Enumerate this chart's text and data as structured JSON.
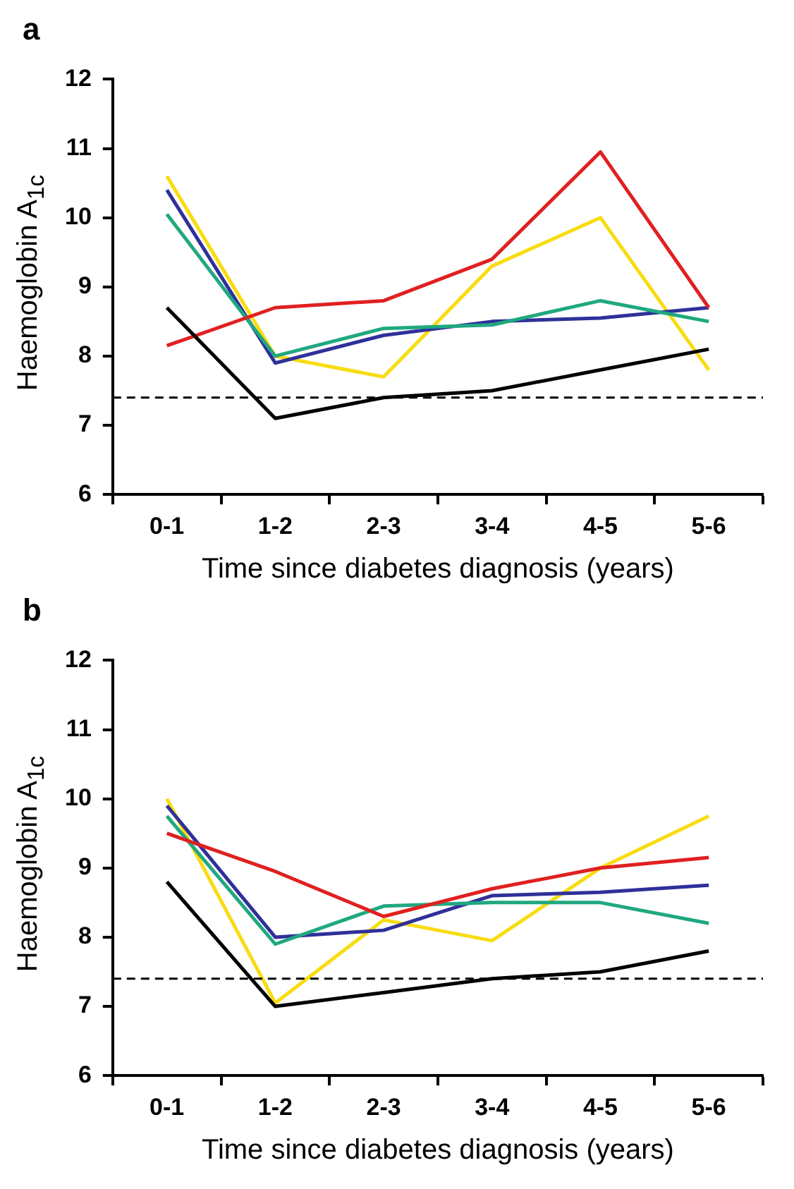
{
  "chart_data": [
    {
      "type": "line",
      "title": "a",
      "xlabel": "Time since diabetes diagnosis (years)",
      "ylabel": "Haemoglobin A$_{1c}$",
      "categories": [
        "0-1",
        "1-2",
        "2-3",
        "3-4",
        "4-5",
        "5-6"
      ],
      "ylim": [
        6,
        12
      ],
      "yticks": [
        6,
        7,
        8,
        9,
        10,
        11,
        12
      ],
      "grid": false,
      "legend": false,
      "marker": "none",
      "line_style": "solid",
      "series": [
        {
          "color": "#000000",
          "values": [
            8.7,
            7.1,
            7.4,
            7.5,
            7.8,
            8.1
          ]
        },
        {
          "color": "#e02020",
          "values": [
            8.15,
            8.7,
            8.8,
            9.4,
            10.95,
            8.7
          ]
        },
        {
          "color": "#20a880",
          "values": [
            10.05,
            8.0,
            8.4,
            8.45,
            8.8,
            8.5
          ]
        },
        {
          "color": "#30309a",
          "values": [
            10.4,
            7.9,
            8.3,
            8.5,
            8.55,
            8.7
          ]
        },
        {
          "color": "#f8dc10",
          "values": [
            10.6,
            8.0,
            7.7,
            9.3,
            10.0,
            7.8
          ]
        }
      ],
      "ref_lines": [
        {
          "axis": "y",
          "value": 7.4,
          "color": "#000000",
          "line_style": "dashed"
        }
      ]
    },
    {
      "type": "line",
      "title": "b",
      "xlabel": "Time since diabetes diagnosis (years)",
      "ylabel": "Haemoglobin A$_{1c}$",
      "categories": [
        "0-1",
        "1-2",
        "2-3",
        "3-4",
        "4-5",
        "5-6"
      ],
      "ylim": [
        6,
        12
      ],
      "yticks": [
        6,
        7,
        8,
        9,
        10,
        11,
        12
      ],
      "grid": false,
      "legend": false,
      "marker": "none",
      "line_style": "solid",
      "series": [
        {
          "color": "#000000",
          "values": [
            8.8,
            7.0,
            7.2,
            7.4,
            7.5,
            7.8
          ]
        },
        {
          "color": "#e02020",
          "values": [
            9.5,
            8.95,
            8.3,
            8.7,
            9.0,
            9.15
          ]
        },
        {
          "color": "#20a880",
          "values": [
            9.75,
            7.9,
            8.45,
            8.5,
            8.5,
            8.2
          ]
        },
        {
          "color": "#30309a",
          "values": [
            9.9,
            8.0,
            8.1,
            8.6,
            8.65,
            8.75
          ]
        },
        {
          "color": "#f8dc10",
          "values": [
            10.0,
            7.05,
            8.25,
            7.95,
            9.0,
            9.75
          ]
        }
      ],
      "ref_lines": [
        {
          "axis": "y",
          "value": 7.4,
          "color": "#000000",
          "line_style": "dashed"
        }
      ]
    }
  ]
}
